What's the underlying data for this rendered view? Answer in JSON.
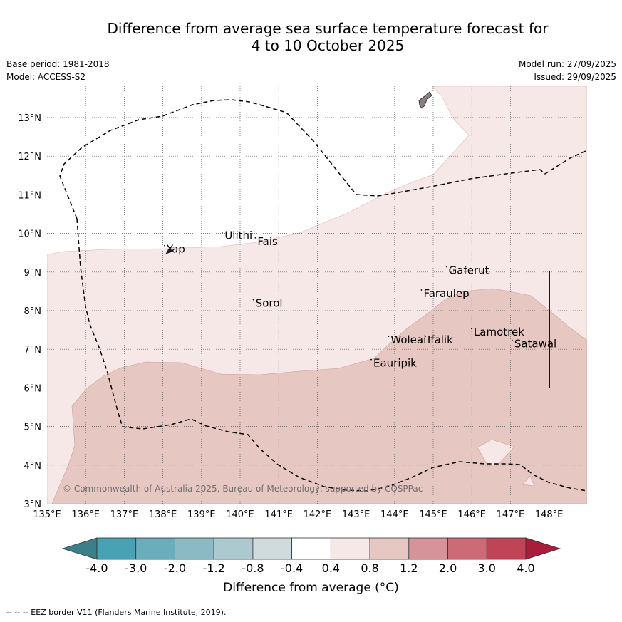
{
  "title": {
    "line1": "Difference from average sea surface temperature forecast for",
    "line2": "4 to 10 October 2025"
  },
  "meta": {
    "base_period": "Base period: 1981-2018",
    "model": "Model: ACCESS-S2",
    "model_run": "Model run: 27/09/2025",
    "issued": "Issued: 29/09/2025"
  },
  "map": {
    "lon_labels": [
      "135°E",
      "136°E",
      "137°E",
      "138°E",
      "139°E",
      "140°E",
      "141°E",
      "142°E",
      "143°E",
      "144°E",
      "145°E",
      "146°E",
      "147°E",
      "148°E"
    ],
    "lat_labels": [
      "3°N",
      "4°N",
      "5°N",
      "6°N",
      "7°N",
      "8°N",
      "9°N",
      "10°N",
      "11°N",
      "12°N",
      "13°N"
    ],
    "places": [
      {
        "name": "Ulithi",
        "lon": 139.6,
        "lat": 9.85
      },
      {
        "name": "Fais",
        "lon": 140.45,
        "lat": 9.7
      },
      {
        "name": "Yap",
        "lon": 138.1,
        "lat": 9.5
      },
      {
        "name": "Gaferut",
        "lon": 145.4,
        "lat": 8.95
      },
      {
        "name": "Faraulep",
        "lon": 144.75,
        "lat": 8.35
      },
      {
        "name": "Sorol",
        "lon": 140.4,
        "lat": 8.1
      },
      {
        "name": "Woleai",
        "lon": 143.9,
        "lat": 7.15
      },
      {
        "name": "Ifalik",
        "lon": 144.85,
        "lat": 7.15
      },
      {
        "name": "Lamotrek",
        "lon": 146.05,
        "lat": 7.35
      },
      {
        "name": "Satawal",
        "lon": 147.1,
        "lat": 7.05
      },
      {
        "name": "Eauripik",
        "lon": 143.45,
        "lat": 6.55
      }
    ],
    "credit": "© Commonwealth of Australia 2025, Bureau of Meteorology, supported by COSPPac"
  },
  "colorbar": {
    "labels": [
      "-4.0",
      "-3.0",
      "-2.0",
      "-1.2",
      "-0.8",
      "-0.4",
      "0.4",
      "0.8",
      "1.2",
      "2.0",
      "3.0",
      "4.0"
    ],
    "under_color": "#3a7f8a",
    "colors": [
      "#48a2b3",
      "#6aaebb",
      "#8bbac4",
      "#abc9ce",
      "#cfdbdc",
      "#ffffff",
      "#f5e8e6",
      "#e7c7c2",
      "#d7939a",
      "#cc6b76",
      "#bf4556"
    ],
    "over_color": "#a91c3a",
    "title": "Difference from average (°C)"
  },
  "legend_footnote": "--  --  -- EEZ border V11 (Flanders Marine Institute, 2019)."
}
